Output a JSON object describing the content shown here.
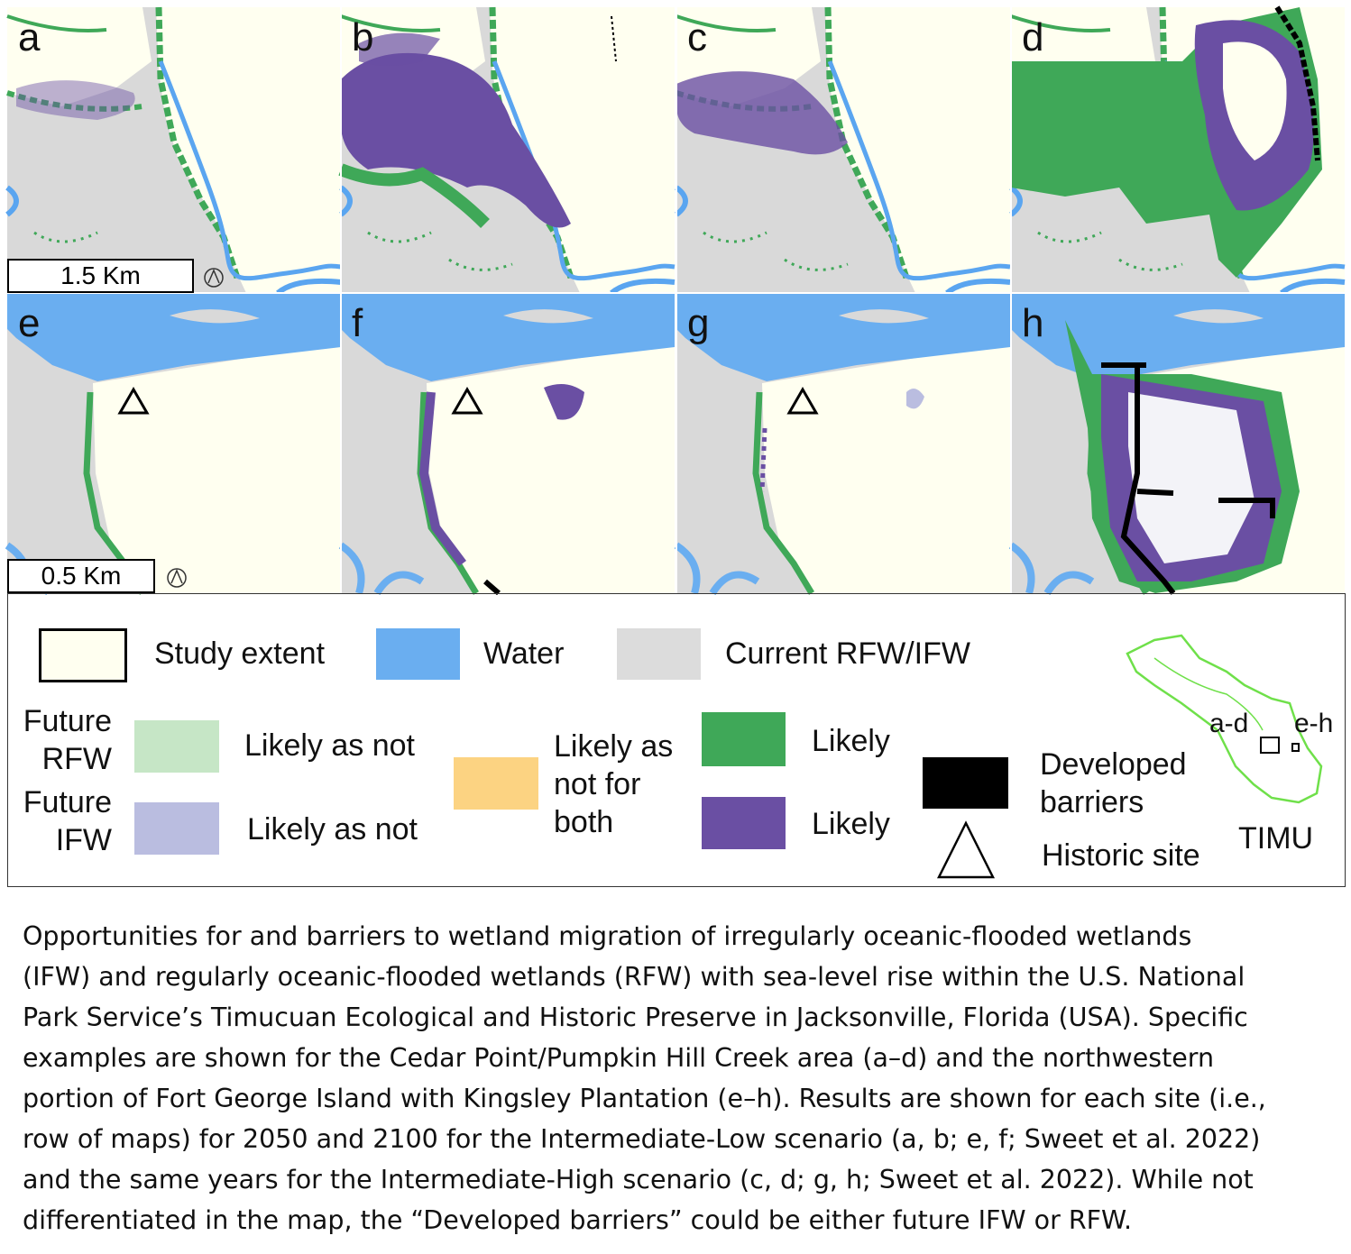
{
  "panels": [
    "a",
    "b",
    "c",
    "d",
    "e",
    "f",
    "g",
    "h"
  ],
  "scale_bars": [
    "1.5 Km",
    "0.5 Km"
  ],
  "legend": {
    "study_extent": "Study extent",
    "water": "Water",
    "current": "Current RFW/IFW",
    "future_rfw": "Future RFW",
    "future_ifw": "Future IFW",
    "rfw_likely_as_not": "Likely as not",
    "ifw_likely_as_not": "Likely as not",
    "both": "Likely as not for both",
    "rfw_likely": "Likely",
    "ifw_likely": "Likely",
    "developed": "Developed barriers",
    "historic": "Historic site",
    "inset_ad": "a-d",
    "inset_eh": "e-h",
    "inset_name": "TIMU"
  },
  "caption": [
    "Opportunities for and barriers to wetland migration of irregularly oceanic-flooded wetlands",
    "(IFW) and regularly oceanic-flooded wetlands (RFW) with sea-level rise within the U.S. National",
    "Park Service’s Timucuan Ecological and Historic Preserve in Jacksonville, Florida (USA). Specific",
    "examples are shown for the Cedar Point/Pumpkin Hill Creek area (a–d) and the northwestern",
    "portion of Fort George Island with Kingsley Plantation (e–h). Results are shown for each site (i.e.,",
    "row of maps) for 2050 and 2100 for the Intermediate-Low scenario (a, b; e, f; Sweet et al. 2022)",
    "and the same years for the Intermediate-High scenario (c, d; g, h; Sweet et al. 2022). While not",
    "differentiated in the map, the “Developed barriers” could be either future IFW or RFW."
  ]
}
